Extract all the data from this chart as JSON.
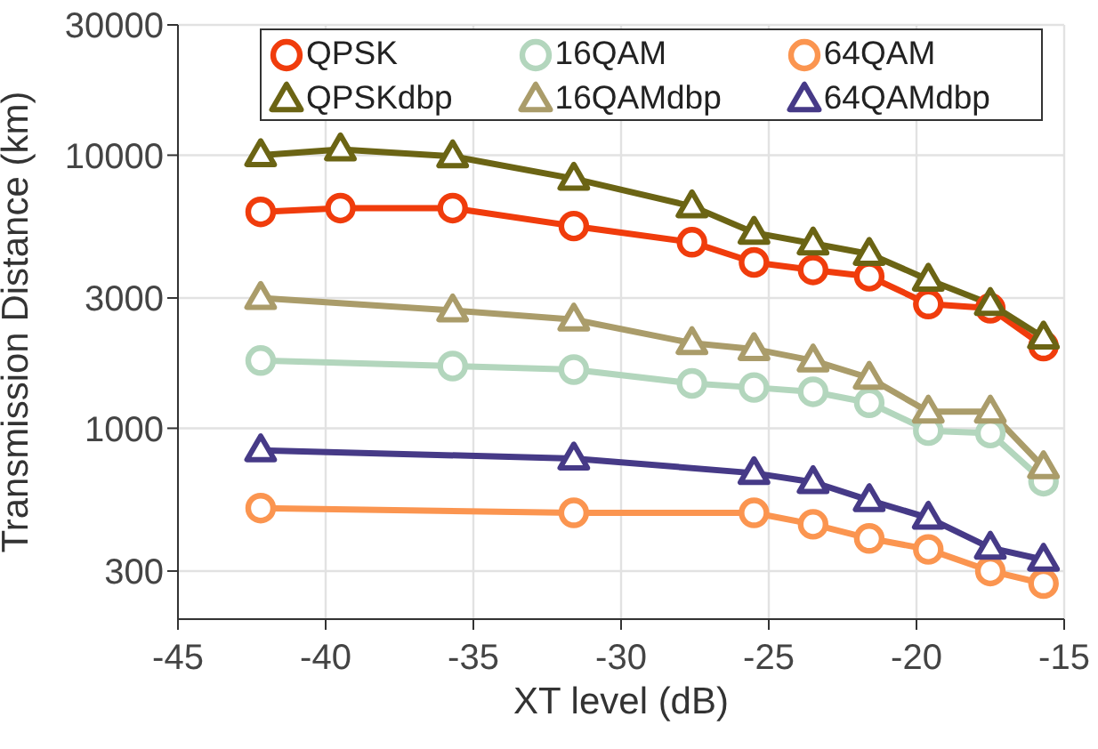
{
  "chart_data": {
    "type": "line",
    "xlabel": "XT level (dB)",
    "ylabel": "Transmission Distance (km)",
    "log": "y",
    "xlim": [
      -45,
      -15
    ],
    "xticks": [
      -45,
      -40,
      -35,
      -30,
      -25,
      -20,
      -15
    ],
    "ylim": [
      200,
      30000
    ],
    "yticks": [
      300,
      1000,
      3000,
      10000,
      30000
    ],
    "grid": true,
    "legend": "top",
    "series": [
      {
        "name": "QPSK",
        "color": "#f03c0c",
        "marker": "circle",
        "x": [
          -42.2,
          -39.5,
          -35.7,
          -31.6,
          -27.6,
          -25.5,
          -23.5,
          -21.6,
          -19.6,
          -17.5,
          -15.7
        ],
        "values": [
          6200,
          6400,
          6400,
          5500,
          4800,
          4050,
          3800,
          3600,
          2850,
          2750,
          2000
        ]
      },
      {
        "name": "16QAM",
        "color": "#b3d6bd",
        "marker": "circle",
        "x": [
          -42.2,
          -35.7,
          -31.6,
          -27.6,
          -25.5,
          -23.5,
          -21.6,
          -19.6,
          -17.5,
          -15.7
        ],
        "values": [
          1770,
          1690,
          1640,
          1460,
          1410,
          1360,
          1240,
          980,
          960,
          640
        ]
      },
      {
        "name": "64QAM",
        "color": "#fb9550",
        "marker": "circle",
        "x": [
          -42.2,
          -31.6,
          -25.5,
          -23.5,
          -21.6,
          -19.6,
          -17.5,
          -15.7
        ],
        "values": [
          510,
          490,
          490,
          445,
          395,
          360,
          300,
          270
        ]
      },
      {
        "name": "QPSKdbp",
        "color": "#6b6414",
        "marker": "triangle",
        "x": [
          -42.2,
          -39.5,
          -35.7,
          -31.6,
          -27.6,
          -25.5,
          -23.5,
          -21.6,
          -19.6,
          -17.5,
          -15.7
        ],
        "values": [
          10000,
          10500,
          9900,
          8200,
          6500,
          5200,
          4750,
          4350,
          3500,
          2850,
          2150
        ]
      },
      {
        "name": "16QAMdbp",
        "color": "#aa9c6a",
        "marker": "triangle",
        "x": [
          -42.2,
          -35.7,
          -31.6,
          -27.6,
          -25.5,
          -23.5,
          -21.6,
          -19.6,
          -17.5,
          -15.7
        ],
        "values": [
          3000,
          2700,
          2500,
          2050,
          1950,
          1770,
          1530,
          1150,
          1150,
          720
        ]
      },
      {
        "name": "64QAMdbp",
        "color": "#463a87",
        "marker": "triangle",
        "x": [
          -42.2,
          -31.6,
          -25.5,
          -23.5,
          -21.6,
          -19.6,
          -17.5,
          -15.7
        ],
        "values": [
          830,
          775,
          685,
          635,
          545,
          470,
          365,
          330
        ]
      }
    ]
  }
}
